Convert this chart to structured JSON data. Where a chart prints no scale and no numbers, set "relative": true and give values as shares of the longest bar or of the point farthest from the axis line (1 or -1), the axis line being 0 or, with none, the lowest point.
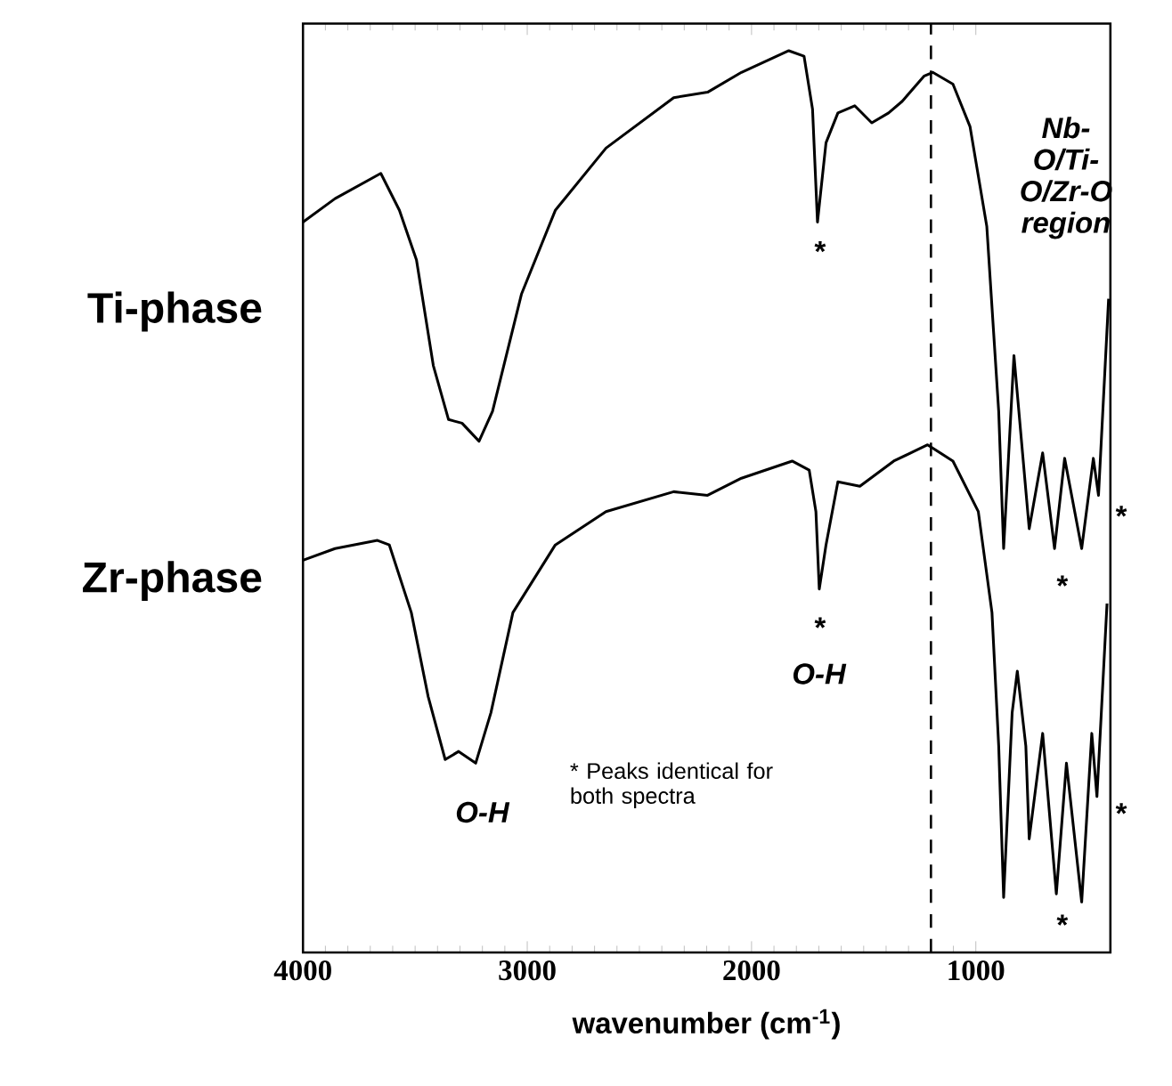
{
  "chart_data": {
    "type": "line",
    "relative": true,
    "xlabel": "wavenumber (cm$^{-1}$)",
    "xlim": [
      4000,
      400
    ],
    "xticks": [
      4000,
      3000,
      2000,
      1000
    ],
    "line_style": "solid",
    "series": [
      {
        "name": "Ti-phase",
        "color": "#000000",
        "x": [
          4000,
          3857,
          3653,
          3570,
          3494,
          3419,
          3351,
          3291,
          3215,
          3155,
          3026,
          2875,
          2649,
          2347,
          2196,
          2045,
          1834,
          1766,
          1728,
          1706,
          1668,
          1615,
          1540,
          1464,
          1389,
          1328,
          1230,
          1192,
          1102,
          1026,
          951,
          898,
          876,
          830,
          762,
          702,
          649,
          604,
          528,
          476,
          453,
          408
        ],
        "values": [
          0.81,
          0.836,
          0.864,
          0.823,
          0.768,
          0.651,
          0.591,
          0.587,
          0.567,
          0.6,
          0.73,
          0.823,
          0.892,
          0.948,
          0.954,
          0.976,
          1.0,
          0.994,
          0.935,
          0.81,
          0.898,
          0.931,
          0.939,
          0.92,
          0.931,
          0.944,
          0.972,
          0.976,
          0.963,
          0.916,
          0.805,
          0.6,
          0.448,
          0.662,
          0.47,
          0.554,
          0.448,
          0.548,
          0.448,
          0.548,
          0.507,
          0.725
        ]
      },
      {
        "name": "Zr-phase",
        "color": "#000000",
        "x": [
          4000,
          3857,
          3668,
          3615,
          3517,
          3442,
          3366,
          3306,
          3230,
          3162,
          3064,
          2875,
          2649,
          2347,
          2196,
          2045,
          1819,
          1743,
          1713,
          1698,
          1668,
          1615,
          1517,
          1366,
          1215,
          1102,
          989,
          928,
          898,
          876,
          838,
          815,
          777,
          762,
          702,
          641,
          596,
          528,
          483,
          460,
          415
        ],
        "values": [
          0.435,
          0.448,
          0.457,
          0.452,
          0.377,
          0.284,
          0.214,
          0.223,
          0.21,
          0.266,
          0.377,
          0.452,
          0.489,
          0.511,
          0.507,
          0.526,
          0.545,
          0.535,
          0.489,
          0.403,
          0.452,
          0.522,
          0.517,
          0.545,
          0.563,
          0.545,
          0.489,
          0.377,
          0.229,
          0.061,
          0.266,
          0.312,
          0.229,
          0.126,
          0.243,
          0.065,
          0.21,
          0.056,
          0.243,
          0.173,
          0.387
        ]
      }
    ],
    "ref_lines": [
      {
        "axis": "x",
        "value": 1200,
        "line_style": "dashed",
        "color": "#000000"
      }
    ],
    "annotations": [
      "*",
      "*",
      "O-H",
      "O-H",
      "*",
      "*",
      "*",
      "*",
      "Nb-O/Ti-O/Zr-O region",
      "* Peaks identical for both spectra"
    ]
  }
}
